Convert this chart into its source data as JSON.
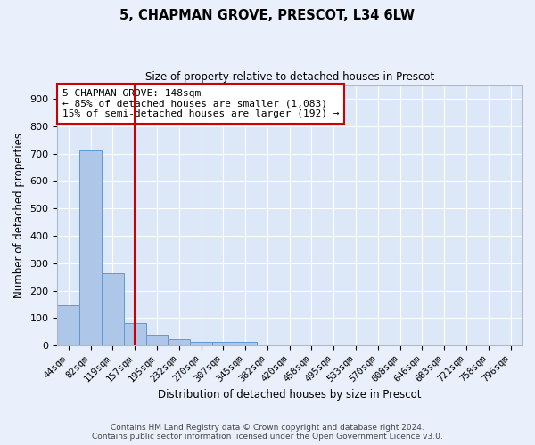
{
  "title": "5, CHAPMAN GROVE, PRESCOT, L34 6LW",
  "subtitle": "Size of property relative to detached houses in Prescot",
  "xlabel": "Distribution of detached houses by size in Prescot",
  "ylabel": "Number of detached properties",
  "bar_labels": [
    "44sqm",
    "82sqm",
    "119sqm",
    "157sqm",
    "195sqm",
    "232sqm",
    "270sqm",
    "307sqm",
    "345sqm",
    "382sqm",
    "420sqm",
    "458sqm",
    "495sqm",
    "533sqm",
    "570sqm",
    "608sqm",
    "646sqm",
    "683sqm",
    "721sqm",
    "758sqm",
    "796sqm"
  ],
  "bar_values": [
    148,
    713,
    263,
    82,
    38,
    22,
    12,
    12,
    12,
    0,
    0,
    0,
    0,
    0,
    0,
    0,
    0,
    0,
    0,
    0,
    0
  ],
  "bar_color": "#aec6e8",
  "bar_edge_color": "#5b9bd5",
  "fig_bg_color": "#eaf0fb",
  "axes_bg_color": "#dce8f8",
  "grid_color": "#ffffff",
  "vline_x": 3,
  "vline_color": "#cc0000",
  "annotation_text": "5 CHAPMAN GROVE: 148sqm\n← 85% of detached houses are smaller (1,083)\n15% of semi-detached houses are larger (192) →",
  "annotation_box_color": "#ffffff",
  "annotation_box_edge": "#cc0000",
  "footer_text": "Contains HM Land Registry data © Crown copyright and database right 2024.\nContains public sector information licensed under the Open Government Licence v3.0.",
  "ylim": [
    0,
    950
  ],
  "yticks": [
    0,
    100,
    200,
    300,
    400,
    500,
    600,
    700,
    800,
    900
  ]
}
